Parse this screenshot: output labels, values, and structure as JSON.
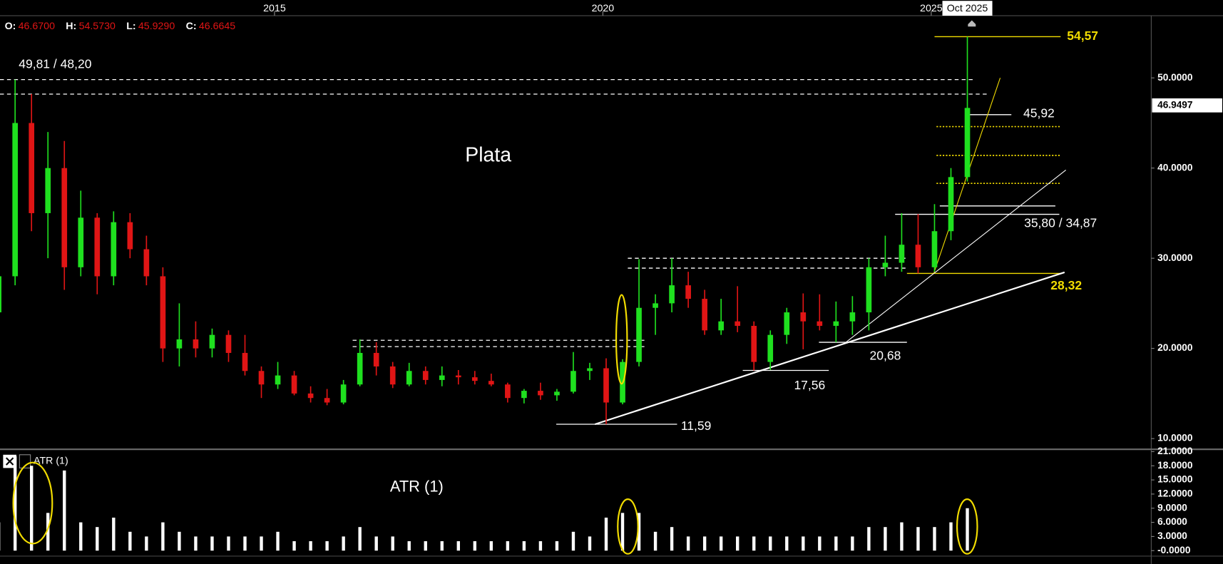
{
  "chart_data": {
    "type": "candlestick",
    "title": "Plata",
    "ohlc_legend": [
      {
        "label": "O:",
        "value": "46.6700"
      },
      {
        "label": "H:",
        "value": "54.5730"
      },
      {
        "label": "L:",
        "value": "45.9290"
      },
      {
        "label": "C:",
        "value": "46.6645"
      }
    ],
    "cursor_label": "Oct 2025",
    "x": [
      2010.8,
      2011.05,
      2011.3,
      2011.55,
      2011.8,
      2012.05,
      2012.3,
      2012.55,
      2012.8,
      2013.05,
      2013.3,
      2013.55,
      2013.8,
      2014.05,
      2014.3,
      2014.55,
      2014.8,
      2015.05,
      2015.3,
      2015.55,
      2015.8,
      2016.05,
      2016.3,
      2016.55,
      2016.8,
      2017.05,
      2017.3,
      2017.55,
      2017.8,
      2018.05,
      2018.3,
      2018.55,
      2018.8,
      2019.05,
      2019.3,
      2019.55,
      2019.8,
      2020.05,
      2020.3,
      2020.55,
      2020.8,
      2021.05,
      2021.3,
      2021.55,
      2021.8,
      2022.05,
      2022.3,
      2022.55,
      2022.8,
      2023.05,
      2023.3,
      2023.55,
      2023.8,
      2024.05,
      2024.3,
      2024.55,
      2024.8,
      2025.05,
      2025.3,
      2025.55
    ],
    "open": [
      24,
      28,
      45,
      35,
      40,
      29,
      34.5,
      28,
      34,
      31,
      28,
      20,
      21,
      20,
      21.5,
      19.5,
      17.5,
      16,
      17,
      15,
      14.5,
      14,
      16,
      19.5,
      18,
      16,
      17.5,
      16.5,
      17,
      16.8,
      16.4,
      16,
      14.5,
      15.3,
      14.8,
      15.2,
      17.5,
      17.8,
      14,
      18.5,
      24.5,
      25,
      27,
      25.5,
      22,
      23,
      22.5,
      18.5,
      21.5,
      24,
      23,
      22.5,
      23,
      24,
      29,
      29.5,
      31.5,
      29,
      33,
      39
    ],
    "high": [
      29,
      49.81,
      48.2,
      44,
      43,
      37.5,
      35,
      35.2,
      35,
      32.5,
      29,
      25,
      23,
      22.2,
      22,
      21.5,
      18,
      18.5,
      17.5,
      15.8,
      15.5,
      16.5,
      21,
      20.7,
      18.5,
      18.4,
      18,
      18,
      17.6,
      17.5,
      17.2,
      16.2,
      15.5,
      16.2,
      15.5,
      19.6,
      18.4,
      18.9,
      18.8,
      29.9,
      26,
      30,
      28.5,
      26.5,
      25.5,
      26.9,
      23,
      22,
      24.5,
      26.1,
      26,
      25.2,
      25.8,
      30,
      32.5,
      35,
      34.9,
      36,
      40,
      54.57
    ],
    "low": [
      23,
      27,
      33,
      30,
      26.5,
      28,
      26,
      27,
      30,
      27,
      18.5,
      18,
      19,
      19,
      18.5,
      17,
      14.5,
      15.5,
      14.8,
      14,
      13.7,
      13.8,
      15.8,
      17,
      15.6,
      15.8,
      16,
      15.8,
      16,
      16,
      15.8,
      14,
      13.9,
      14.3,
      14.2,
      15,
      16.5,
      11.59,
      13.8,
      18,
      21.5,
      24,
      24.5,
      21.5,
      21.5,
      21.8,
      17.56,
      17.6,
      20.5,
      19.9,
      22,
      20.68,
      21.5,
      22,
      28,
      28.5,
      28.32,
      28.5,
      32,
      38.5
    ],
    "close": [
      28,
      45,
      35,
      40,
      29,
      34.5,
      28,
      34,
      31,
      28,
      20,
      21,
      20,
      21.5,
      19.5,
      17.5,
      16,
      17,
      15,
      14.5,
      14,
      16,
      19.5,
      18,
      16,
      17.5,
      16.5,
      17,
      16.8,
      16.4,
      16,
      14.5,
      15.3,
      14.8,
      15.2,
      17.5,
      17.8,
      14,
      18.5,
      24.5,
      25,
      27,
      25.5,
      22,
      23,
      22.5,
      18.5,
      21.5,
      24,
      23,
      22.5,
      23,
      24,
      29,
      29.5,
      31.5,
      29,
      33,
      39,
      46.67
    ],
    "up_color": "#1fe01f",
    "down_color": "#e01515",
    "xlim": [
      2010.82,
      2028.35
    ],
    "xticks": [
      2015,
      2020,
      2025
    ],
    "ylim": [
      8.9,
      56.9
    ],
    "yticks": [
      {
        "value": 50,
        "label": "50.0000"
      },
      {
        "value": 40,
        "label": "40.0000"
      },
      {
        "value": 30,
        "label": "30.0000"
      },
      {
        "value": 20,
        "label": "20.0000"
      },
      {
        "value": 10,
        "label": "10.0000"
      }
    ],
    "last_price": 46.9497,
    "annotations": [
      {
        "label": "49,81 / 48,20",
        "color": "#ffffff",
        "style": "dashed",
        "lines": [
          {
            "value": 49.81,
            "from": 2010.82,
            "to": 2025.65
          },
          {
            "value": 48.2,
            "from": 2010.82,
            "to": 2025.88
          }
        ]
      },
      {
        "label": "54,57",
        "color": "#f2dc00",
        "style": "solid",
        "lines": [
          {
            "value": 54.57,
            "from": 2025.05,
            "to": 2026.97
          }
        ]
      },
      {
        "label": "45,92",
        "color": "#ffffff",
        "style": "solid",
        "lines": [
          {
            "value": 45.92,
            "from": 2025.55,
            "to": 2026.22
          }
        ]
      },
      {
        "label": "35,80 / 34,87",
        "color": "#ffffff",
        "style": "solid",
        "lines": [
          {
            "value": 35.8,
            "from": 2025.13,
            "to": 2026.89
          },
          {
            "value": 34.87,
            "from": 2024.45,
            "to": 2026.95
          }
        ]
      },
      {
        "label": "28,32",
        "color": "#f2dc00",
        "style": "solid",
        "lines": [
          {
            "value": 28.32,
            "from": 2024.63,
            "to": 2026.97
          }
        ]
      },
      {
        "label": "20,68",
        "color": "#ffffff",
        "style": "solid",
        "lines": [
          {
            "value": 20.68,
            "from": 2023.29,
            "to": 2024.63
          }
        ]
      },
      {
        "label": "17,56",
        "color": "#ffffff",
        "style": "solid",
        "lines": [
          {
            "value": 17.56,
            "from": 2022.13,
            "to": 2023.44
          }
        ]
      },
      {
        "label": "11,59",
        "color": "#ffffff",
        "style": "solid",
        "lines": [
          {
            "value": 11.59,
            "from": 2019.29,
            "to": 2021.13
          }
        ]
      },
      {
        "color": "#f2dc00",
        "style": "dotted",
        "lines": [
          {
            "value": 44.6,
            "from": 2025.08,
            "to": 2026.97
          },
          {
            "value": 41.4,
            "from": 2025.08,
            "to": 2026.97
          },
          {
            "value": 38.3,
            "from": 2025.08,
            "to": 2026.97
          }
        ]
      },
      {
        "color": "#ffffff",
        "style": "dashed",
        "lines": [
          {
            "value": 30,
            "from": 2020.38,
            "to": 2024.65
          },
          {
            "value": 28.9,
            "from": 2020.38,
            "to": 2024.65
          }
        ]
      },
      {
        "color": "#ffffff",
        "style": "dashed",
        "lines": [
          {
            "value": 20.9,
            "from": 2016.19,
            "to": 2020.64
          },
          {
            "value": 20.2,
            "from": 2016.19,
            "to": 2020.64
          }
        ]
      }
    ],
    "trendlines": [
      {
        "from": [
          2019.88,
          11.59
        ],
        "to": [
          2027.03,
          28.44
        ],
        "color": "#ffffff",
        "width": 2
      },
      {
        "from": [
          2023.68,
          20.56
        ],
        "to": [
          2027.05,
          39.78
        ],
        "color": "#ffffff",
        "width": 1
      },
      {
        "from": [
          2025.04,
          28.35
        ],
        "to": [
          2026.05,
          50
        ],
        "color": "#f2dc00",
        "width": 1
      }
    ],
    "atr": {
      "type": "bar",
      "name": "ATR (1)",
      "color": "#ffffff",
      "values": [
        6,
        20,
        18,
        8,
        17,
        6,
        5,
        7,
        4,
        3,
        6,
        4,
        3,
        3,
        3,
        3,
        3,
        4,
        2,
        2,
        2,
        3,
        5,
        3,
        3,
        2,
        2,
        2,
        2,
        2,
        2,
        2,
        2,
        2,
        2,
        4,
        3,
        7,
        8,
        8,
        4,
        5,
        3,
        3,
        3,
        3,
        3,
        3,
        3,
        3,
        3,
        3,
        3,
        5,
        5,
        6,
        5,
        5,
        6,
        9
      ],
      "ylim": [
        -1,
        21.5
      ],
      "yticks": [
        {
          "value": 21,
          "label": "21.0000"
        },
        {
          "value": 18,
          "label": "18.0000"
        },
        {
          "value": 15,
          "label": "15.0000"
        },
        {
          "value": 12,
          "label": "12.0000"
        },
        {
          "value": 9,
          "label": "9.0000"
        },
        {
          "value": 6,
          "label": "6.0000"
        },
        {
          "value": 3,
          "label": "3.0000"
        },
        {
          "value": 0,
          "label": "-0.0000"
        }
      ]
    }
  }
}
